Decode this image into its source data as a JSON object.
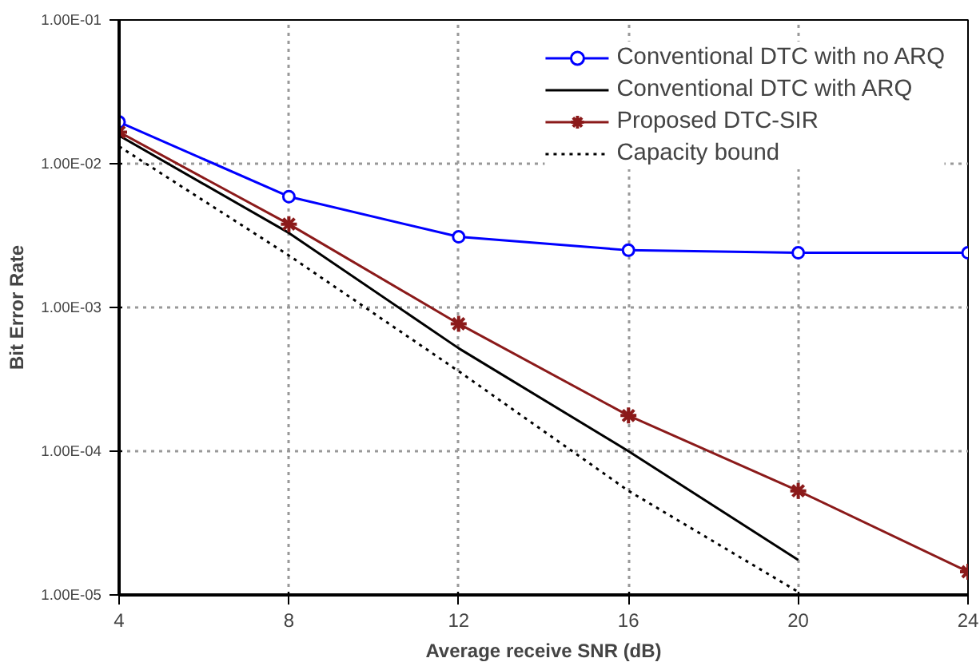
{
  "chart_data": {
    "type": "line",
    "xlabel": "Average receive SNR (dB)",
    "ylabel": "Bit Error Rate",
    "x": [
      4,
      8,
      12,
      16,
      20,
      24
    ],
    "series": [
      {
        "name": "Conventional DTC with no ARQ",
        "color": "#0000ff",
        "marker": "circle",
        "line_style": "solid",
        "values": [
          0.0195,
          0.0059,
          0.0031,
          0.0025,
          0.0024,
          0.0024
        ]
      },
      {
        "name": "Conventional DTC with ARQ",
        "color": "#000000",
        "marker": "none",
        "line_style": "solid",
        "values": [
          0.0157,
          0.0033,
          0.00052,
          0.0001,
          1.75e-05,
          null
        ]
      },
      {
        "name": "Proposed DTC-SIR",
        "color": "#8b1a1a",
        "marker": "cross",
        "line_style": "solid",
        "values": [
          0.0166,
          0.0038,
          0.00077,
          0.000177,
          5.3e-05,
          1.45e-05
        ]
      },
      {
        "name": "Capacity bound",
        "color": "#000000",
        "marker": "none",
        "line_style": "dotted",
        "values": [
          0.0132,
          0.0023,
          0.00036,
          5.3e-05,
          1.05e-05,
          null
        ]
      }
    ],
    "log": "y",
    "xlim": [
      4,
      24
    ],
    "ylim": [
      1e-05,
      0.1
    ],
    "xticks": [
      4,
      8,
      12,
      16,
      20,
      24
    ],
    "yticks": [
      {
        "value": 1e-05,
        "label": "1.00E-05"
      },
      {
        "value": 0.0001,
        "label": "1.00E-04"
      },
      {
        "value": 0.001,
        "label": "1.00E-03"
      },
      {
        "value": 0.01,
        "label": "1.00E-02"
      },
      {
        "value": 0.1,
        "label": "1.00E-01"
      }
    ],
    "grid": true,
    "legend": "top right"
  }
}
